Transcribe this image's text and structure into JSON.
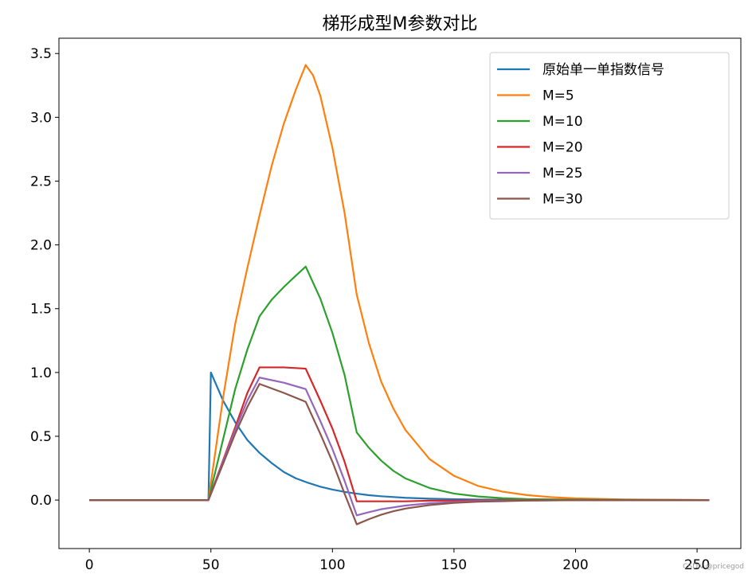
{
  "chart_data": {
    "type": "line",
    "title": "梯形成型M参数对比",
    "xlabel": "",
    "ylabel": "",
    "xlim": [
      -12.5,
      268
    ],
    "ylim": [
      -0.38,
      3.62
    ],
    "xticks": [
      0,
      50,
      100,
      150,
      200,
      250
    ],
    "yticks": [
      0.0,
      0.5,
      1.0,
      1.5,
      2.0,
      2.5,
      3.0,
      3.5
    ],
    "ytick_labels": [
      "0.0",
      "0.5",
      "1.0",
      "1.5",
      "2.0",
      "2.5",
      "3.0",
      "3.5"
    ],
    "grid": false,
    "legend_position": "top-right",
    "series": [
      {
        "name": "原始单一单指数信号",
        "color": "#1f77b4",
        "x": [
          0,
          49,
          50,
          55,
          60,
          65,
          70,
          75,
          80,
          85,
          90,
          95,
          100,
          105,
          110,
          115,
          120,
          130,
          140,
          150,
          160,
          180,
          200,
          255
        ],
        "y": [
          0,
          0,
          1.0,
          0.78,
          0.61,
          0.47,
          0.37,
          0.29,
          0.22,
          0.17,
          0.135,
          0.105,
          0.082,
          0.064,
          0.05,
          0.038,
          0.03,
          0.018,
          0.011,
          0.007,
          0.004,
          0.002,
          0.001,
          0
        ]
      },
      {
        "name": "M=5",
        "color": "#ff7f0e",
        "x": [
          0,
          49,
          55,
          60,
          65,
          70,
          75,
          80,
          85,
          89,
          92,
          95,
          100,
          105,
          110,
          115,
          120,
          125,
          130,
          140,
          150,
          160,
          170,
          180,
          190,
          200,
          220,
          255
        ],
        "y": [
          0,
          0,
          0.8,
          1.38,
          1.82,
          2.23,
          2.62,
          2.95,
          3.22,
          3.41,
          3.33,
          3.17,
          2.76,
          2.25,
          1.61,
          1.23,
          0.93,
          0.72,
          0.55,
          0.32,
          0.19,
          0.11,
          0.066,
          0.039,
          0.023,
          0.013,
          0.005,
          0
        ]
      },
      {
        "name": "M=10",
        "color": "#2ca02c",
        "x": [
          0,
          49,
          60,
          65,
          70,
          75,
          80,
          85,
          89,
          95,
          100,
          105,
          110,
          115,
          120,
          125,
          130,
          140,
          150,
          160,
          170,
          180,
          200,
          255
        ],
        "y": [
          0,
          0,
          0.87,
          1.18,
          1.44,
          1.57,
          1.67,
          1.76,
          1.83,
          1.58,
          1.31,
          0.98,
          0.53,
          0.41,
          0.31,
          0.23,
          0.17,
          0.094,
          0.051,
          0.028,
          0.015,
          0.008,
          0.003,
          0
        ]
      },
      {
        "name": "M=20",
        "color": "#d62728",
        "x": [
          0,
          49,
          60,
          65,
          70,
          80,
          89,
          95,
          100,
          105,
          110,
          120,
          130,
          140,
          160,
          180,
          200,
          255
        ],
        "y": [
          0,
          0,
          0.57,
          0.84,
          1.04,
          1.04,
          1.03,
          0.78,
          0.56,
          0.3,
          -0.01,
          -0.01,
          -0.01,
          -0.005,
          -0.002,
          -0.001,
          0,
          0
        ]
      },
      {
        "name": "M=25",
        "color": "#9467bd",
        "x": [
          0,
          49,
          60,
          65,
          70,
          80,
          89,
          95,
          100,
          105,
          110,
          115,
          120,
          130,
          140,
          150,
          160,
          180,
          200,
          255
        ],
        "y": [
          0,
          0,
          0.55,
          0.78,
          0.96,
          0.92,
          0.87,
          0.62,
          0.4,
          0.15,
          -0.12,
          -0.095,
          -0.072,
          -0.043,
          -0.025,
          -0.015,
          -0.008,
          -0.003,
          -0.001,
          0
        ]
      },
      {
        "name": "M=30",
        "color": "#8c564b",
        "x": [
          0,
          49,
          60,
          65,
          70,
          80,
          89,
          95,
          100,
          105,
          110,
          115,
          120,
          125,
          130,
          140,
          150,
          160,
          180,
          200,
          255
        ],
        "y": [
          0,
          0,
          0.52,
          0.73,
          0.91,
          0.84,
          0.77,
          0.52,
          0.3,
          0.05,
          -0.19,
          -0.15,
          -0.115,
          -0.088,
          -0.067,
          -0.039,
          -0.022,
          -0.013,
          -0.004,
          -0.001,
          0
        ]
      }
    ]
  },
  "watermark": "CSDN @pricegod"
}
